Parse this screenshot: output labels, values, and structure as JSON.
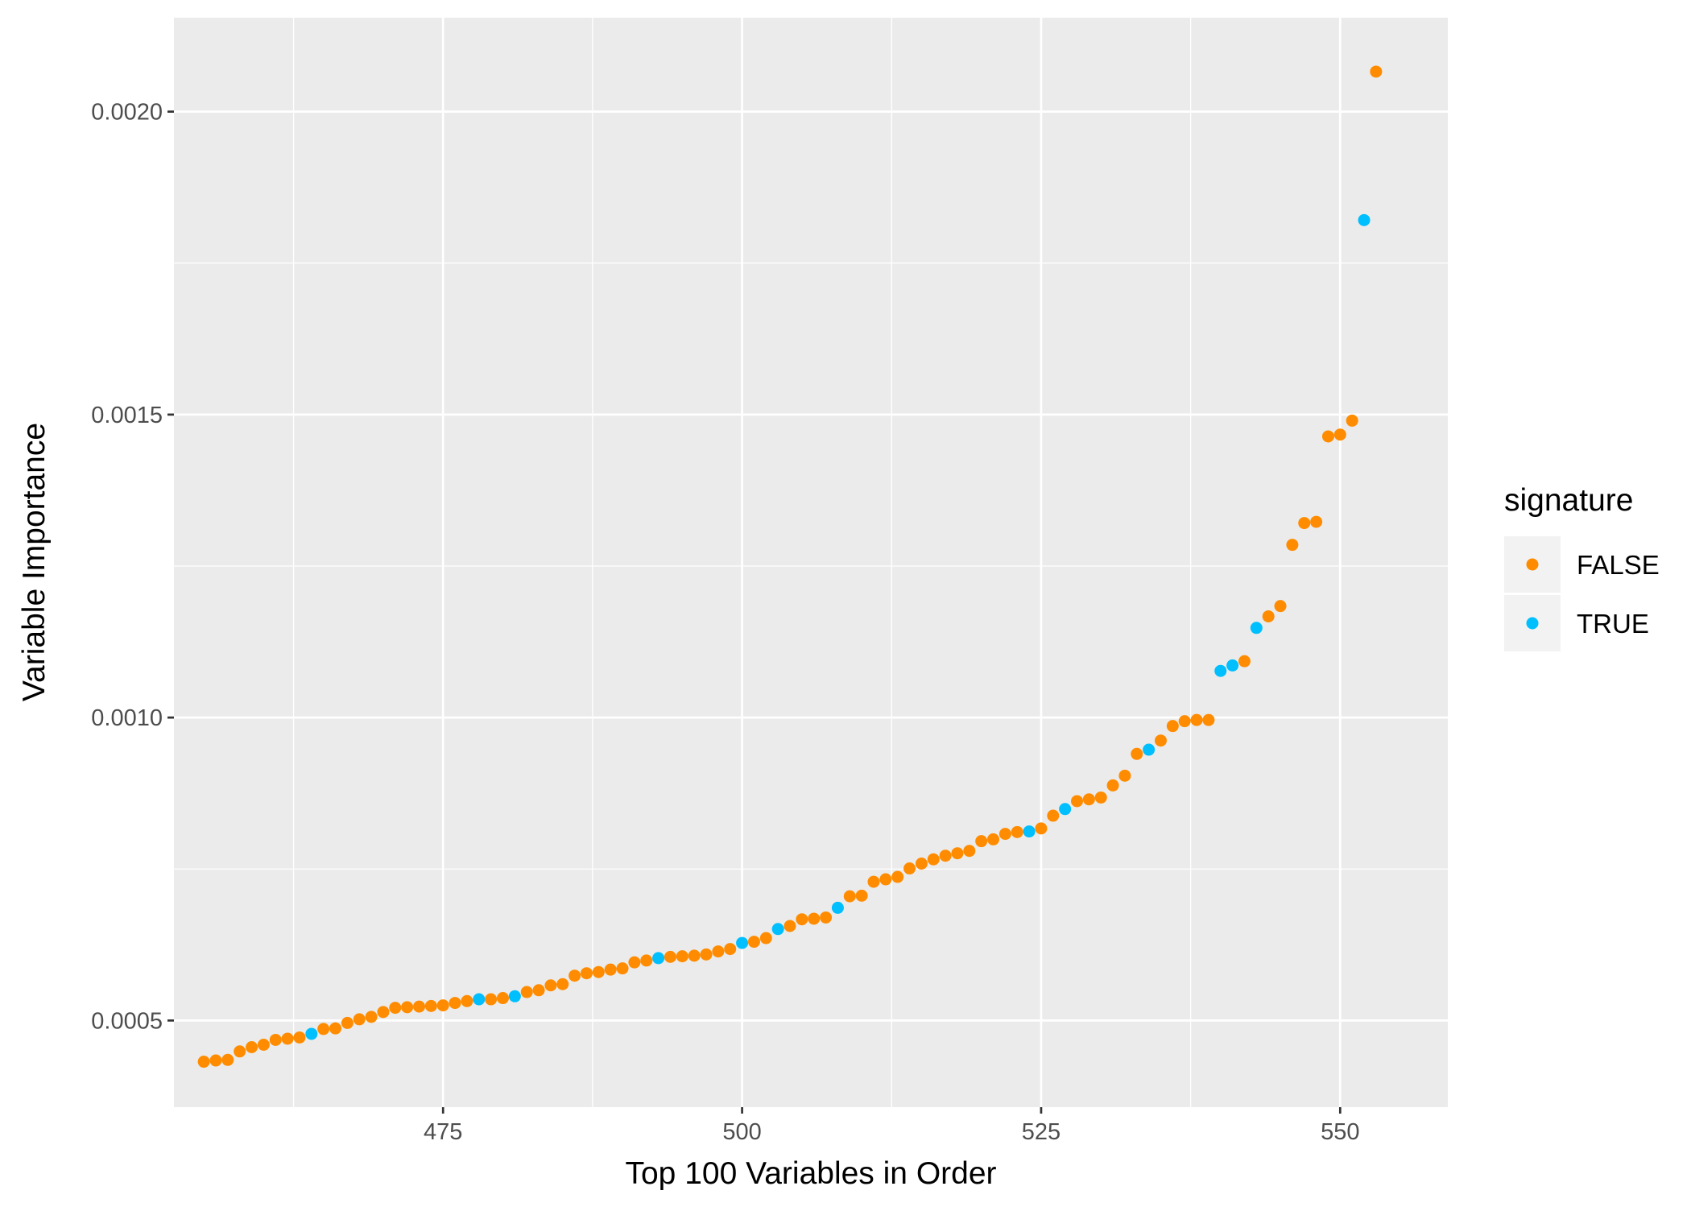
{
  "chart_data": {
    "type": "scatter",
    "title": "",
    "xlabel": "Top 100 Variables in Order",
    "ylabel": "Variable Importance",
    "xlim": [
      452.5,
      559
    ],
    "ylim": [
      0.000357,
      0.002155
    ],
    "x_ticks": [
      475,
      500,
      525,
      550
    ],
    "x_tick_labels": [
      "475",
      "500",
      "525",
      "550"
    ],
    "x_minor_ticks": [
      462.5,
      487.5,
      512.5,
      537.5
    ],
    "y_ticks": [
      0.0005,
      0.001,
      0.0015,
      0.002
    ],
    "y_tick_labels": [
      "0.0005",
      "0.0010",
      "0.0015",
      "0.0020"
    ],
    "y_minor_ticks": [
      0.00075,
      0.00125,
      0.00175
    ],
    "grid": true,
    "legend": {
      "title": "signature",
      "position": "right",
      "entries": [
        {
          "label": "FALSE",
          "color": "#FF8C00"
        },
        {
          "label": "TRUE",
          "color": "#00BFFF"
        }
      ]
    },
    "colors": {
      "FALSE": "#FF8C00",
      "TRUE": "#00BFFF",
      "panel": "#EBEBEB",
      "grid": "#FFFFFF"
    },
    "series": [
      {
        "name": "FALSE",
        "color": "#FF8C00",
        "points": [
          [
            455,
            0.000432
          ],
          [
            456,
            0.000434
          ],
          [
            457,
            0.000435
          ],
          [
            458,
            0.000449
          ],
          [
            459,
            0.000456
          ],
          [
            460,
            0.00046
          ],
          [
            461,
            0.000468
          ],
          [
            462,
            0.00047
          ],
          [
            463,
            0.000472
          ],
          [
            465,
            0.000486
          ],
          [
            466,
            0.000487
          ],
          [
            467,
            0.000496
          ],
          [
            468,
            0.000502
          ],
          [
            469,
            0.000506
          ],
          [
            470,
            0.000514
          ],
          [
            471,
            0.000521
          ],
          [
            472,
            0.000522
          ],
          [
            473,
            0.000523
          ],
          [
            474,
            0.000524
          ],
          [
            475,
            0.000525
          ],
          [
            476,
            0.000529
          ],
          [
            477,
            0.000532
          ],
          [
            479,
            0.000535
          ],
          [
            480,
            0.000537
          ],
          [
            482,
            0.000547
          ],
          [
            483,
            0.00055
          ],
          [
            484,
            0.000558
          ],
          [
            485,
            0.00056
          ],
          [
            486,
            0.000574
          ],
          [
            487,
            0.000578
          ],
          [
            488,
            0.00058
          ],
          [
            489,
            0.000584
          ],
          [
            490,
            0.000586
          ],
          [
            491,
            0.000596
          ],
          [
            492,
            0.000599
          ],
          [
            494,
            0.000605
          ],
          [
            495,
            0.000606
          ],
          [
            496,
            0.000607
          ],
          [
            497,
            0.000609
          ],
          [
            498,
            0.000614
          ],
          [
            499,
            0.000618
          ],
          [
            501,
            0.00063
          ],
          [
            502,
            0.000636
          ],
          [
            504,
            0.000656
          ],
          [
            505,
            0.000667
          ],
          [
            506,
            0.000668
          ],
          [
            507,
            0.00067
          ],
          [
            509,
            0.000705
          ],
          [
            510,
            0.000706
          ],
          [
            511,
            0.000729
          ],
          [
            512,
            0.000733
          ],
          [
            513,
            0.000737
          ],
          [
            514,
            0.000751
          ],
          [
            515,
            0.000759
          ],
          [
            516,
            0.000766
          ],
          [
            517,
            0.000772
          ],
          [
            518,
            0.000776
          ],
          [
            519,
            0.00078
          ],
          [
            520,
            0.000796
          ],
          [
            521,
            0.000799
          ],
          [
            522,
            0.000808
          ],
          [
            523,
            0.000811
          ],
          [
            525,
            0.000817
          ],
          [
            526,
            0.000838
          ],
          [
            528,
            0.000862
          ],
          [
            529,
            0.000865
          ],
          [
            530,
            0.000868
          ],
          [
            531,
            0.000888
          ],
          [
            532,
            0.000904
          ],
          [
            533,
            0.00094
          ],
          [
            535,
            0.000962
          ],
          [
            536,
            0.000986
          ],
          [
            537,
            0.000994
          ],
          [
            538,
            0.000996
          ],
          [
            539,
            0.000996
          ],
          [
            542,
            0.001093
          ],
          [
            544,
            0.001167
          ],
          [
            545,
            0.001184
          ],
          [
            546,
            0.001285
          ],
          [
            547,
            0.001321
          ],
          [
            548,
            0.001323
          ],
          [
            549,
            0.001464
          ],
          [
            550,
            0.001467
          ],
          [
            551,
            0.00149
          ],
          [
            553,
            0.002066
          ]
        ]
      },
      {
        "name": "TRUE",
        "color": "#00BFFF",
        "points": [
          [
            464,
            0.000478
          ],
          [
            478,
            0.000535
          ],
          [
            481,
            0.00054
          ],
          [
            493,
            0.000603
          ],
          [
            500,
            0.000628
          ],
          [
            503,
            0.000651
          ],
          [
            508,
            0.000686
          ],
          [
            524,
            0.000812
          ],
          [
            527,
            0.000849
          ],
          [
            534,
            0.000947
          ],
          [
            540,
            0.001077
          ],
          [
            541,
            0.001086
          ],
          [
            543,
            0.001148
          ],
          [
            552,
            0.001821
          ]
        ]
      }
    ]
  }
}
